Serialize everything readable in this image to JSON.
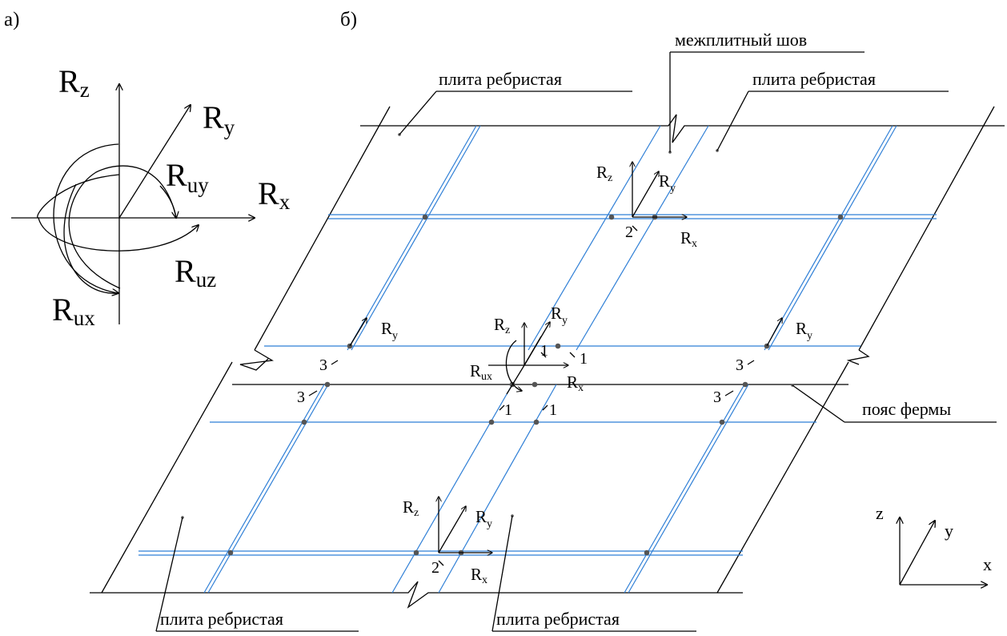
{
  "panels": {
    "a": "а)",
    "b": "б)"
  },
  "panel_a": {
    "Rz": {
      "main": "R",
      "sub": "z"
    },
    "Ry": {
      "main": "R",
      "sub": "y"
    },
    "Rx": {
      "main": "R",
      "sub": "x"
    },
    "Ruy": {
      "main": "R",
      "sub": "uy"
    },
    "Ruz": {
      "main": "R",
      "sub": "uz"
    },
    "Rux": {
      "main": "R",
      "sub": "ux"
    }
  },
  "labels": {
    "slab_top_left": "плита ребристая",
    "slab_top_right": "плита ребристая",
    "slab_bottom_left": "плита ребристая",
    "slab_bottom_right": "плита ребристая",
    "joint": "межплитный шов",
    "chord": "пояс фермы"
  },
  "node_numbers": {
    "one": "1",
    "two": "2",
    "three": "3"
  },
  "force_symbols": {
    "R": "R",
    "x": "x",
    "y": "y",
    "z": "z",
    "ux": "ux"
  },
  "axes": {
    "x": "x",
    "y": "y",
    "z": "z"
  },
  "colors": {
    "rib": "#2f7fd6",
    "line": "#000000",
    "node": "#555555"
  }
}
